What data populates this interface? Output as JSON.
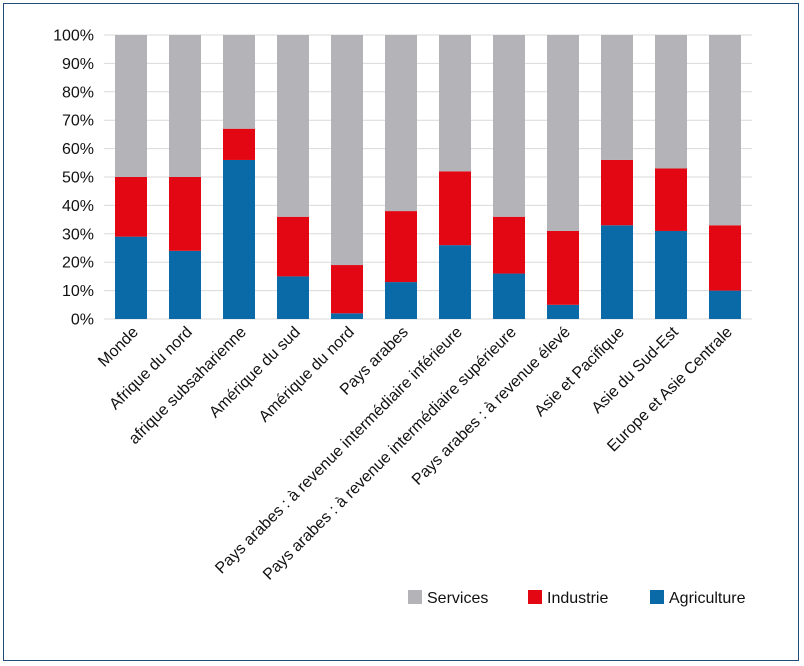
{
  "chart_data": {
    "type": "bar",
    "stacked": true,
    "categories": [
      "Monde",
      "Afrique du nord",
      "afrique subsaharienne",
      "Amérique du sud",
      "Amérique  du nord",
      "Pays arabes",
      "Pays arabes : à revenue intermédiaire inférieure",
      "Pays arabes : à revenue intermédiaire supérieure",
      "Pays arabes : à revenue élevé",
      "Asie et Pacifique",
      "Asie du Sud-Est",
      "Europe et Asie Centrale"
    ],
    "series": [
      {
        "name": "Agriculture",
        "color": "#0a6aa8",
        "values": [
          29,
          24,
          56,
          15,
          2,
          13,
          26,
          16,
          5,
          33,
          31,
          10
        ]
      },
      {
        "name": "Industrie",
        "color": "#e30613",
        "values": [
          21,
          26,
          11,
          21,
          17,
          25,
          26,
          20,
          26,
          23,
          22,
          23
        ]
      },
      {
        "name": "Services",
        "color": "#b3b3b8",
        "values": [
          50,
          50,
          33,
          64,
          81,
          62,
          48,
          64,
          69,
          44,
          47,
          67
        ]
      }
    ],
    "yticks": [
      "0%",
      "10%",
      "20%",
      "30%",
      "40%",
      "50%",
      "60%",
      "70%",
      "80%",
      "90%",
      "100%"
    ],
    "ylim": [
      0,
      100
    ],
    "legend": [
      "Services",
      "Industrie",
      "Agriculture"
    ],
    "legend_position": "bottom-right",
    "grid": true,
    "title": "",
    "xlabel": "",
    "ylabel": ""
  }
}
